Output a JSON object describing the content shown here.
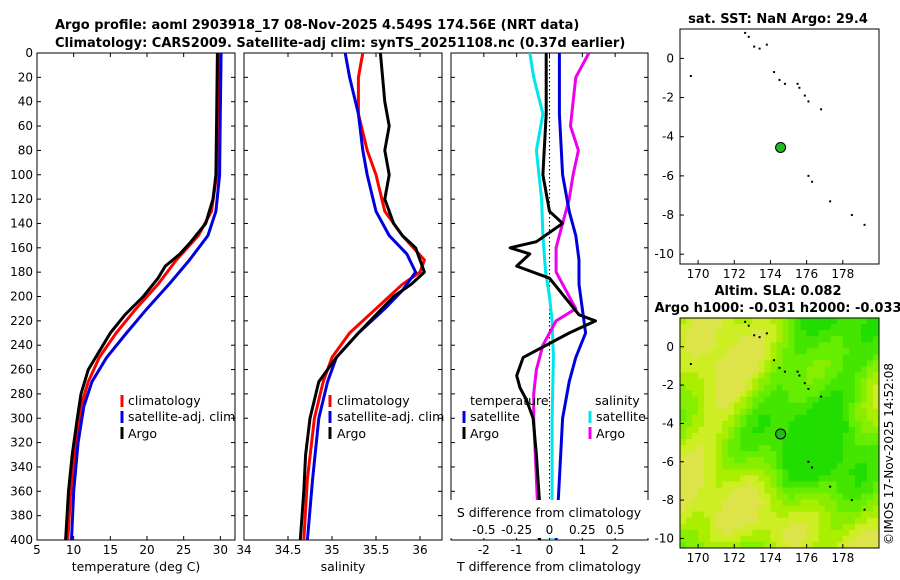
{
  "header": {
    "title_line1": "Argo profile: aoml 2903918_17 08-Nov-2025 4.549S 174.56E (NRT data)",
    "title_line2": "Climatology: CARS2009. Satellite-adj clim: synTS_20251108.nc (0.37d earlier)"
  },
  "colors": {
    "climatology": "#ff0000",
    "satellite": "#0000dd",
    "argo": "#000000",
    "salinity_sat": "#00e5ee",
    "salinity_argo": "#ee00ee"
  },
  "chart_data": [
    {
      "type": "line",
      "panel": "temperature",
      "xlabel": "temperature (deg C)",
      "xlim": [
        5,
        32
      ],
      "xticks": [
        "5",
        "10",
        "15",
        "20",
        "25",
        "30"
      ],
      "ylim": [
        400,
        0
      ],
      "yticks": [
        "0",
        "20",
        "40",
        "60",
        "80",
        "100",
        "120",
        "140",
        "160",
        "180",
        "200",
        "220",
        "240",
        "260",
        "280",
        "300",
        "320",
        "340",
        "360",
        "380",
        "400"
      ],
      "legend": [
        "climatology",
        "satellite-adj. clim",
        "Argo"
      ],
      "series": [
        {
          "name": "climatology",
          "depth": [
            0,
            50,
            100,
            130,
            150,
            170,
            190,
            210,
            230,
            250,
            270,
            290,
            320,
            360,
            400
          ],
          "values": [
            29.8,
            29.7,
            29.5,
            28.8,
            27.0,
            24.0,
            21.5,
            18.5,
            15.8,
            13.5,
            12.0,
            11.0,
            10.3,
            9.6,
            9.2
          ]
        },
        {
          "name": "satellite-adj. clim",
          "depth": [
            0,
            50,
            100,
            130,
            150,
            170,
            190,
            210,
            230,
            250,
            270,
            290,
            320,
            360,
            400
          ],
          "values": [
            30.1,
            30.0,
            29.9,
            29.4,
            28.3,
            25.8,
            23.0,
            20.0,
            17.2,
            14.5,
            12.5,
            11.4,
            10.6,
            10.0,
            9.7
          ]
        },
        {
          "name": "Argo",
          "depth": [
            0,
            50,
            100,
            120,
            140,
            155,
            165,
            175,
            185,
            200,
            215,
            230,
            245,
            260,
            280,
            300,
            330,
            360,
            400
          ],
          "values": [
            29.6,
            29.5,
            29.4,
            29.0,
            28.0,
            26.0,
            24.5,
            22.5,
            21.5,
            19.5,
            17.0,
            15.0,
            13.5,
            12.0,
            11.0,
            10.5,
            9.8,
            9.3,
            8.9
          ]
        }
      ]
    },
    {
      "type": "line",
      "panel": "salinity",
      "xlabel": "salinity",
      "xlim": [
        34.0,
        36.25
      ],
      "xticks": [
        "34",
        "34.5",
        "35",
        "35.5",
        "36"
      ],
      "ylim": [
        400,
        0
      ],
      "legend": [
        "climatology",
        "satellite-adj. clim",
        "Argo"
      ],
      "series": [
        {
          "name": "climatology",
          "depth": [
            0,
            20,
            50,
            80,
            100,
            130,
            150,
            170,
            180,
            190,
            210,
            230,
            250,
            270,
            300,
            350,
            400
          ],
          "values": [
            35.35,
            35.3,
            35.3,
            35.4,
            35.5,
            35.6,
            35.8,
            36.05,
            36.0,
            35.8,
            35.5,
            35.2,
            35.0,
            34.9,
            34.8,
            34.72,
            34.68
          ]
        },
        {
          "name": "satellite-adj. clim",
          "depth": [
            0,
            20,
            50,
            80,
            100,
            130,
            150,
            165,
            180,
            195,
            210,
            230,
            250,
            270,
            300,
            350,
            400
          ],
          "values": [
            35.15,
            35.2,
            35.3,
            35.35,
            35.4,
            35.5,
            35.65,
            35.85,
            35.95,
            35.8,
            35.6,
            35.3,
            35.05,
            34.95,
            34.85,
            34.78,
            34.72
          ]
        },
        {
          "name": "Argo",
          "depth": [
            0,
            40,
            60,
            80,
            100,
            120,
            140,
            150,
            160,
            170,
            180,
            190,
            200,
            215,
            230,
            250,
            270,
            300,
            330,
            360,
            400
          ],
          "values": [
            35.55,
            35.6,
            35.65,
            35.6,
            35.65,
            35.6,
            35.7,
            35.8,
            35.95,
            36.0,
            36.05,
            35.9,
            35.7,
            35.5,
            35.3,
            35.05,
            34.85,
            34.75,
            34.7,
            34.68,
            34.64
          ]
        }
      ]
    },
    {
      "type": "line",
      "panel": "difference",
      "xlabel": "T difference from climatology",
      "xlabel_top": "S difference from climatology",
      "xlim": [
        -3,
        3
      ],
      "xticks": [
        "-2",
        "-1",
        "0",
        "1",
        "2"
      ],
      "s_ticks": [
        "-0.5",
        "-0.25",
        "0",
        "0.25",
        "0.5"
      ],
      "ylim": [
        400,
        0
      ],
      "legend_temperature": [
        "temperature",
        "satellite",
        "Argo"
      ],
      "legend_salinity": [
        "salinity",
        "satellite",
        "Argo"
      ],
      "series": [
        {
          "name": "T satellite",
          "depth": [
            0,
            50,
            100,
            130,
            150,
            170,
            190,
            210,
            230,
            250,
            270,
            300,
            350,
            400
          ],
          "values": [
            0.3,
            0.3,
            0.4,
            0.6,
            0.8,
            0.9,
            0.9,
            1.0,
            1.1,
            0.8,
            0.6,
            0.4,
            0.3,
            0.2
          ]
        },
        {
          "name": "T Argo",
          "depth": [
            0,
            50,
            100,
            130,
            140,
            155,
            160,
            165,
            175,
            185,
            195,
            205,
            215,
            220,
            230,
            250,
            265,
            275,
            285,
            300,
            330,
            370,
            400
          ],
          "values": [
            -0.1,
            -0.1,
            -0.2,
            0.0,
            0.4,
            -0.4,
            -1.2,
            -0.6,
            -1.0,
            0.0,
            0.3,
            0.6,
            0.9,
            1.4,
            0.6,
            -0.8,
            -1.0,
            -0.9,
            -0.7,
            -0.5,
            -0.4,
            -0.3,
            -0.3
          ]
        },
        {
          "name": "S satellite",
          "depth": [
            0,
            20,
            50,
            80,
            100,
            120,
            150,
            180,
            200,
            220,
            250,
            300,
            350,
            400
          ],
          "values": [
            -0.15,
            -0.12,
            -0.05,
            -0.1,
            -0.08,
            -0.06,
            -0.05,
            -0.03,
            0.0,
            0.02,
            0.03,
            0.02,
            0.02,
            0.02
          ]
        },
        {
          "name": "S Argo",
          "depth": [
            0,
            20,
            40,
            60,
            80,
            100,
            120,
            140,
            160,
            180,
            200,
            210,
            220,
            240,
            260,
            280,
            300,
            350,
            400
          ],
          "values": [
            0.3,
            0.2,
            0.18,
            0.16,
            0.22,
            0.18,
            0.15,
            0.1,
            0.05,
            0.05,
            0.15,
            0.2,
            0.05,
            -0.05,
            -0.1,
            -0.12,
            -0.12,
            -0.1,
            -0.08
          ]
        }
      ]
    },
    {
      "type": "scatter",
      "panel": "sst_map",
      "title": "sat. SST: NaN Argo: 29.4",
      "xlim": [
        169,
        180
      ],
      "ylim": [
        -10.5,
        1.5
      ],
      "xticks": [
        "170",
        "172",
        "174",
        "176",
        "178"
      ],
      "yticks": [
        "0",
        "-2",
        "-4",
        "-6",
        "-8",
        "-10"
      ],
      "argo_position": {
        "lon": 174.56,
        "lat": -4.549
      }
    },
    {
      "type": "heatmap",
      "panel": "sla_map",
      "title_line1": "Altim. SLA: 0.082",
      "title_line2": "Argo h1000: -0.031 h2000: -0.033",
      "xlim": [
        169,
        180
      ],
      "ylim": [
        -10.5,
        1.5
      ],
      "xticks": [
        "170",
        "172",
        "174",
        "176",
        "178"
      ],
      "yticks": [
        "0",
        "-2",
        "-4",
        "-6",
        "-8",
        "-10"
      ],
      "argo_position": {
        "lon": 174.56,
        "lat": -4.549
      }
    }
  ],
  "stamp": "©IMOS 17-Nov-2025 14:52:08"
}
